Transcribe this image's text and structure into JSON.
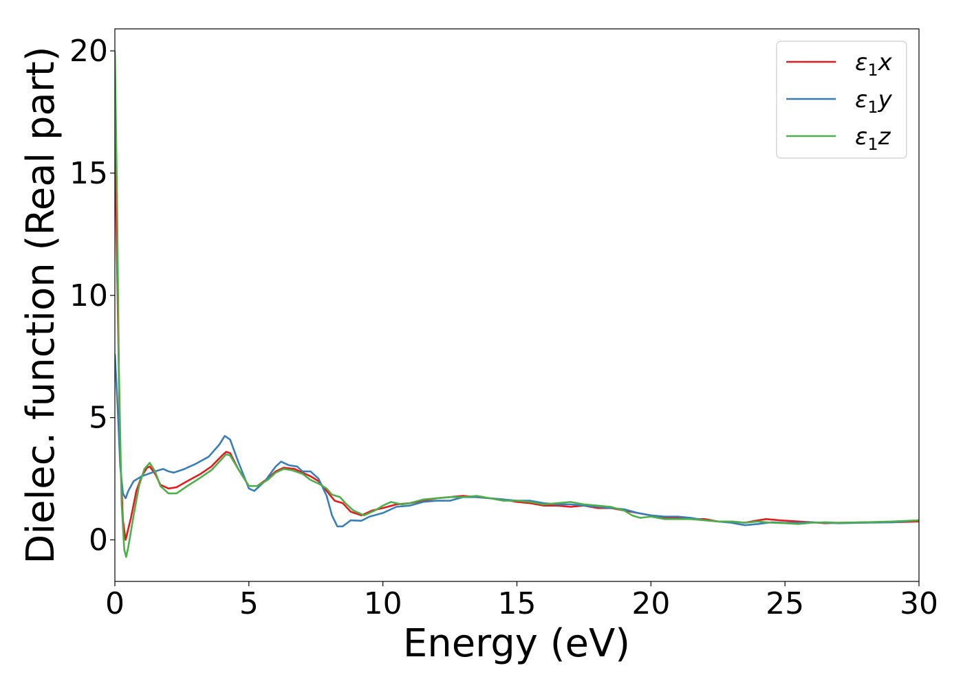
{
  "chart_data": {
    "type": "line",
    "xlabel": "Energy (eV)",
    "ylabel": "Dielec. function (Real part)",
    "xlim": [
      0,
      30
    ],
    "ylim": [
      -1.7,
      20.9
    ],
    "xticks": [
      0,
      5,
      10,
      15,
      20,
      25,
      30
    ],
    "yticks": [
      0,
      5,
      10,
      15,
      20
    ],
    "grid": false,
    "legend_position": "top-right",
    "series": [
      {
        "name": "ε1x",
        "legend_base": "ε",
        "legend_sub": "1",
        "legend_var": "x",
        "color": "#e41a1c",
        "points": [
          [
            0,
            16.5
          ],
          [
            0.1,
            10.0
          ],
          [
            0.2,
            3.5
          ],
          [
            0.3,
            0.8
          ],
          [
            0.4,
            0.0
          ],
          [
            0.6,
            0.9
          ],
          [
            0.8,
            2.0
          ],
          [
            1.0,
            2.6
          ],
          [
            1.2,
            2.95
          ],
          [
            1.3,
            3.0
          ],
          [
            1.5,
            2.7
          ],
          [
            1.7,
            2.25
          ],
          [
            2.0,
            2.1
          ],
          [
            2.3,
            2.15
          ],
          [
            2.7,
            2.4
          ],
          [
            3.2,
            2.7
          ],
          [
            3.6,
            3.0
          ],
          [
            4.0,
            3.45
          ],
          [
            4.15,
            3.6
          ],
          [
            4.3,
            3.55
          ],
          [
            4.6,
            2.9
          ],
          [
            5.0,
            2.2
          ],
          [
            5.3,
            2.2
          ],
          [
            5.7,
            2.5
          ],
          [
            6.0,
            2.8
          ],
          [
            6.3,
            2.95
          ],
          [
            6.7,
            2.9
          ],
          [
            7.0,
            2.75
          ],
          [
            7.3,
            2.6
          ],
          [
            7.6,
            2.4
          ],
          [
            7.9,
            2.0
          ],
          [
            8.2,
            1.6
          ],
          [
            8.5,
            1.5
          ],
          [
            8.8,
            1.15
          ],
          [
            9.2,
            1.0
          ],
          [
            9.6,
            1.2
          ],
          [
            10.0,
            1.3
          ],
          [
            10.5,
            1.45
          ],
          [
            11.0,
            1.5
          ],
          [
            11.5,
            1.6
          ],
          [
            12.0,
            1.7
          ],
          [
            12.5,
            1.75
          ],
          [
            13.0,
            1.8
          ],
          [
            13.5,
            1.75
          ],
          [
            14.0,
            1.7
          ],
          [
            14.5,
            1.65
          ],
          [
            15.0,
            1.55
          ],
          [
            15.5,
            1.5
          ],
          [
            16.0,
            1.4
          ],
          [
            16.5,
            1.4
          ],
          [
            17.0,
            1.35
          ],
          [
            17.5,
            1.4
          ],
          [
            18.0,
            1.3
          ],
          [
            18.5,
            1.3
          ],
          [
            19.0,
            1.2
          ],
          [
            19.5,
            1.1
          ],
          [
            20.0,
            1.0
          ],
          [
            20.5,
            0.9
          ],
          [
            21.0,
            0.9
          ],
          [
            21.5,
            0.85
          ],
          [
            22.0,
            0.85
          ],
          [
            22.5,
            0.75
          ],
          [
            23.0,
            0.75
          ],
          [
            23.5,
            0.7
          ],
          [
            24.0,
            0.8
          ],
          [
            24.3,
            0.85
          ],
          [
            24.8,
            0.8
          ],
          [
            25.5,
            0.75
          ],
          [
            26.0,
            0.72
          ],
          [
            26.5,
            0.68
          ],
          [
            27.0,
            0.7
          ],
          [
            28.0,
            0.72
          ],
          [
            29.0,
            0.72
          ],
          [
            30.0,
            0.75
          ]
        ]
      },
      {
        "name": "ε1y",
        "legend_base": "ε",
        "legend_sub": "1",
        "legend_var": "y",
        "color": "#377eb8",
        "points": [
          [
            0,
            7.6
          ],
          [
            0.1,
            5.5
          ],
          [
            0.2,
            3.0
          ],
          [
            0.3,
            1.9
          ],
          [
            0.4,
            1.7
          ],
          [
            0.5,
            2.0
          ],
          [
            0.7,
            2.4
          ],
          [
            1.0,
            2.6
          ],
          [
            1.5,
            2.8
          ],
          [
            1.8,
            2.9
          ],
          [
            2.0,
            2.8
          ],
          [
            2.2,
            2.75
          ],
          [
            2.6,
            2.9
          ],
          [
            3.0,
            3.1
          ],
          [
            3.5,
            3.4
          ],
          [
            3.9,
            3.9
          ],
          [
            4.1,
            4.25
          ],
          [
            4.3,
            4.1
          ],
          [
            4.6,
            3.2
          ],
          [
            5.0,
            2.1
          ],
          [
            5.2,
            2.0
          ],
          [
            5.6,
            2.4
          ],
          [
            6.0,
            3.0
          ],
          [
            6.2,
            3.2
          ],
          [
            6.5,
            3.05
          ],
          [
            6.8,
            3.0
          ],
          [
            7.0,
            2.8
          ],
          [
            7.3,
            2.8
          ],
          [
            7.6,
            2.5
          ],
          [
            7.9,
            1.8
          ],
          [
            8.1,
            1.0
          ],
          [
            8.3,
            0.55
          ],
          [
            8.5,
            0.55
          ],
          [
            8.8,
            0.8
          ],
          [
            9.2,
            0.78
          ],
          [
            9.5,
            0.95
          ],
          [
            10.0,
            1.1
          ],
          [
            10.5,
            1.35
          ],
          [
            11.0,
            1.4
          ],
          [
            11.5,
            1.55
          ],
          [
            12.0,
            1.6
          ],
          [
            12.5,
            1.6
          ],
          [
            13.0,
            1.75
          ],
          [
            13.5,
            1.75
          ],
          [
            14.0,
            1.7
          ],
          [
            14.5,
            1.65
          ],
          [
            15.0,
            1.6
          ],
          [
            15.5,
            1.6
          ],
          [
            16.0,
            1.5
          ],
          [
            16.5,
            1.45
          ],
          [
            17.0,
            1.45
          ],
          [
            17.5,
            1.4
          ],
          [
            18.0,
            1.35
          ],
          [
            18.5,
            1.3
          ],
          [
            19.0,
            1.25
          ],
          [
            19.5,
            1.1
          ],
          [
            20.0,
            1.0
          ],
          [
            20.5,
            0.95
          ],
          [
            21.0,
            0.95
          ],
          [
            21.5,
            0.9
          ],
          [
            22.0,
            0.8
          ],
          [
            22.5,
            0.75
          ],
          [
            23.0,
            0.7
          ],
          [
            23.5,
            0.6
          ],
          [
            24.0,
            0.65
          ],
          [
            24.5,
            0.72
          ],
          [
            25.0,
            0.7
          ],
          [
            25.5,
            0.7
          ],
          [
            26.0,
            0.72
          ],
          [
            26.5,
            0.7
          ],
          [
            27.0,
            0.68
          ],
          [
            28.0,
            0.7
          ],
          [
            29.0,
            0.72
          ],
          [
            30.0,
            0.8
          ]
        ]
      },
      {
        "name": "ε1z",
        "legend_base": "ε",
        "legend_sub": "1",
        "legend_var": "z",
        "color": "#4daf4a",
        "points": [
          [
            0,
            20.0
          ],
          [
            0.08,
            14.0
          ],
          [
            0.15,
            7.0
          ],
          [
            0.25,
            1.5
          ],
          [
            0.35,
            -0.4
          ],
          [
            0.42,
            -0.7
          ],
          [
            0.5,
            -0.3
          ],
          [
            0.7,
            1.0
          ],
          [
            0.9,
            2.2
          ],
          [
            1.1,
            2.9
          ],
          [
            1.3,
            3.15
          ],
          [
            1.5,
            2.8
          ],
          [
            1.7,
            2.2
          ],
          [
            2.0,
            1.9
          ],
          [
            2.3,
            1.9
          ],
          [
            2.7,
            2.2
          ],
          [
            3.2,
            2.55
          ],
          [
            3.6,
            2.85
          ],
          [
            3.9,
            3.2
          ],
          [
            4.15,
            3.5
          ],
          [
            4.3,
            3.45
          ],
          [
            4.6,
            2.9
          ],
          [
            5.0,
            2.2
          ],
          [
            5.3,
            2.2
          ],
          [
            5.7,
            2.45
          ],
          [
            6.0,
            2.75
          ],
          [
            6.3,
            2.9
          ],
          [
            6.6,
            2.85
          ],
          [
            7.0,
            2.7
          ],
          [
            7.3,
            2.45
          ],
          [
            7.6,
            2.3
          ],
          [
            7.9,
            2.1
          ],
          [
            8.1,
            1.85
          ],
          [
            8.4,
            1.75
          ],
          [
            8.6,
            1.5
          ],
          [
            8.9,
            1.2
          ],
          [
            9.3,
            1.0
          ],
          [
            9.7,
            1.2
          ],
          [
            10.0,
            1.4
          ],
          [
            10.3,
            1.55
          ],
          [
            10.7,
            1.45
          ],
          [
            11.0,
            1.5
          ],
          [
            11.5,
            1.65
          ],
          [
            12.0,
            1.7
          ],
          [
            12.5,
            1.75
          ],
          [
            13.0,
            1.75
          ],
          [
            13.5,
            1.8
          ],
          [
            14.0,
            1.7
          ],
          [
            14.5,
            1.6
          ],
          [
            15.0,
            1.6
          ],
          [
            15.5,
            1.55
          ],
          [
            16.0,
            1.45
          ],
          [
            16.5,
            1.5
          ],
          [
            17.0,
            1.55
          ],
          [
            17.5,
            1.45
          ],
          [
            18.0,
            1.4
          ],
          [
            18.5,
            1.35
          ],
          [
            19.0,
            1.2
          ],
          [
            19.3,
            1.0
          ],
          [
            19.6,
            0.9
          ],
          [
            20.0,
            0.95
          ],
          [
            20.5,
            0.85
          ],
          [
            21.0,
            0.85
          ],
          [
            21.5,
            0.85
          ],
          [
            22.0,
            0.8
          ],
          [
            22.5,
            0.75
          ],
          [
            23.0,
            0.75
          ],
          [
            23.5,
            0.7
          ],
          [
            24.0,
            0.75
          ],
          [
            24.5,
            0.7
          ],
          [
            25.0,
            0.68
          ],
          [
            25.5,
            0.65
          ],
          [
            26.0,
            0.7
          ],
          [
            26.5,
            0.72
          ],
          [
            27.0,
            0.7
          ],
          [
            28.0,
            0.72
          ],
          [
            29.0,
            0.75
          ],
          [
            30.0,
            0.8
          ]
        ]
      }
    ]
  }
}
